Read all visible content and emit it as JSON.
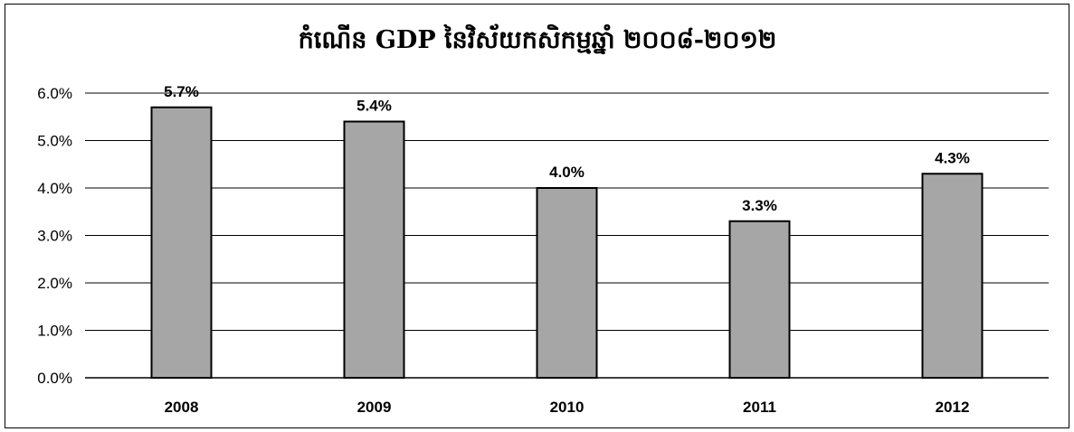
{
  "chart_data": {
    "type": "bar",
    "title": "កំណើន GDP នៃវិស័យកសិកម្មឆ្នាំ ២០០៨-២០១២",
    "xlabel": "",
    "ylabel": "",
    "categories": [
      "2008",
      "2009",
      "2010",
      "2011",
      "2012"
    ],
    "values": [
      5.7,
      5.4,
      4.0,
      3.3,
      4.3
    ],
    "data_labels": [
      "5.7%",
      "5.4%",
      "4.0%",
      "3.3%",
      "4.3%"
    ],
    "ylim": [
      0,
      6
    ],
    "yticks": [
      0,
      1,
      2,
      3,
      4,
      5,
      6
    ],
    "ytick_labels": [
      "0.0%",
      "1.0%",
      "2.0%",
      "3.0%",
      "4.0%",
      "5.0%",
      "6.0%"
    ],
    "grid": true,
    "legend": false,
    "bar_color": "#a6a6a6",
    "bar_edge_color": "#000000"
  }
}
